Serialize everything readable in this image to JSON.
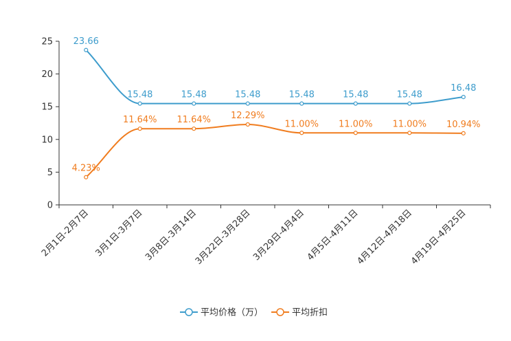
{
  "chart_data": {
    "type": "line",
    "categories": [
      "2月1日-2月7日",
      "3月1日-3月7日",
      "3月8日-3月14日",
      "3月22日-3月28日",
      "3月29日-4月4日",
      "4月5日-4月11日",
      "4月12日-4月18日",
      "4月19日-4月25日"
    ],
    "ylim": [
      0,
      25
    ],
    "yticks": [
      0,
      5,
      10,
      15,
      20,
      25
    ],
    "series": [
      {
        "name": "平均价格（万）",
        "color": "#3d9ccc",
        "values": [
          23.66,
          15.48,
          15.48,
          15.48,
          15.48,
          15.48,
          15.48,
          16.48
        ],
        "labels": [
          "23.66",
          "15.48",
          "15.48",
          "15.48",
          "15.48",
          "15.48",
          "15.48",
          "16.48"
        ]
      },
      {
        "name": "平均折扣",
        "color": "#f07c1e",
        "values": [
          4.23,
          11.64,
          11.64,
          12.29,
          11.0,
          11.0,
          11.0,
          10.94
        ],
        "labels": [
          "4.23%",
          "11.64%",
          "11.64%",
          "12.29%",
          "11.00%",
          "11.00%",
          "11.00%",
          "10.94%"
        ]
      }
    ],
    "legend_position": "bottom-center"
  }
}
